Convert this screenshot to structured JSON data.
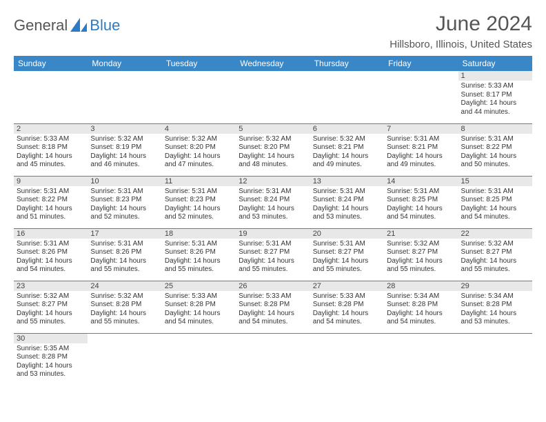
{
  "logo": {
    "text1": "General",
    "text2": "Blue"
  },
  "title": "June 2024",
  "location": "Hillsboro, Illinois, United States",
  "weekdays": [
    "Sunday",
    "Monday",
    "Tuesday",
    "Wednesday",
    "Thursday",
    "Friday",
    "Saturday"
  ],
  "colors": {
    "header_bg": "#3a87c8",
    "header_fg": "#ffffff",
    "daynum_bg": "#e8e8e8",
    "border": "#3a87c8",
    "logo_blue": "#2d7bc4",
    "text": "#333333"
  },
  "weeks": [
    [
      null,
      null,
      null,
      null,
      null,
      null,
      {
        "n": "1",
        "sr": "5:33 AM",
        "ss": "8:17 PM",
        "dl": "14 hours and 44 minutes."
      }
    ],
    [
      {
        "n": "2",
        "sr": "5:33 AM",
        "ss": "8:18 PM",
        "dl": "14 hours and 45 minutes."
      },
      {
        "n": "3",
        "sr": "5:32 AM",
        "ss": "8:19 PM",
        "dl": "14 hours and 46 minutes."
      },
      {
        "n": "4",
        "sr": "5:32 AM",
        "ss": "8:20 PM",
        "dl": "14 hours and 47 minutes."
      },
      {
        "n": "5",
        "sr": "5:32 AM",
        "ss": "8:20 PM",
        "dl": "14 hours and 48 minutes."
      },
      {
        "n": "6",
        "sr": "5:32 AM",
        "ss": "8:21 PM",
        "dl": "14 hours and 49 minutes."
      },
      {
        "n": "7",
        "sr": "5:31 AM",
        "ss": "8:21 PM",
        "dl": "14 hours and 49 minutes."
      },
      {
        "n": "8",
        "sr": "5:31 AM",
        "ss": "8:22 PM",
        "dl": "14 hours and 50 minutes."
      }
    ],
    [
      {
        "n": "9",
        "sr": "5:31 AM",
        "ss": "8:22 PM",
        "dl": "14 hours and 51 minutes."
      },
      {
        "n": "10",
        "sr": "5:31 AM",
        "ss": "8:23 PM",
        "dl": "14 hours and 52 minutes."
      },
      {
        "n": "11",
        "sr": "5:31 AM",
        "ss": "8:23 PM",
        "dl": "14 hours and 52 minutes."
      },
      {
        "n": "12",
        "sr": "5:31 AM",
        "ss": "8:24 PM",
        "dl": "14 hours and 53 minutes."
      },
      {
        "n": "13",
        "sr": "5:31 AM",
        "ss": "8:24 PM",
        "dl": "14 hours and 53 minutes."
      },
      {
        "n": "14",
        "sr": "5:31 AM",
        "ss": "8:25 PM",
        "dl": "14 hours and 54 minutes."
      },
      {
        "n": "15",
        "sr": "5:31 AM",
        "ss": "8:25 PM",
        "dl": "14 hours and 54 minutes."
      }
    ],
    [
      {
        "n": "16",
        "sr": "5:31 AM",
        "ss": "8:26 PM",
        "dl": "14 hours and 54 minutes."
      },
      {
        "n": "17",
        "sr": "5:31 AM",
        "ss": "8:26 PM",
        "dl": "14 hours and 55 minutes."
      },
      {
        "n": "18",
        "sr": "5:31 AM",
        "ss": "8:26 PM",
        "dl": "14 hours and 55 minutes."
      },
      {
        "n": "19",
        "sr": "5:31 AM",
        "ss": "8:27 PM",
        "dl": "14 hours and 55 minutes."
      },
      {
        "n": "20",
        "sr": "5:31 AM",
        "ss": "8:27 PM",
        "dl": "14 hours and 55 minutes."
      },
      {
        "n": "21",
        "sr": "5:32 AM",
        "ss": "8:27 PM",
        "dl": "14 hours and 55 minutes."
      },
      {
        "n": "22",
        "sr": "5:32 AM",
        "ss": "8:27 PM",
        "dl": "14 hours and 55 minutes."
      }
    ],
    [
      {
        "n": "23",
        "sr": "5:32 AM",
        "ss": "8:27 PM",
        "dl": "14 hours and 55 minutes."
      },
      {
        "n": "24",
        "sr": "5:32 AM",
        "ss": "8:28 PM",
        "dl": "14 hours and 55 minutes."
      },
      {
        "n": "25",
        "sr": "5:33 AM",
        "ss": "8:28 PM",
        "dl": "14 hours and 54 minutes."
      },
      {
        "n": "26",
        "sr": "5:33 AM",
        "ss": "8:28 PM",
        "dl": "14 hours and 54 minutes."
      },
      {
        "n": "27",
        "sr": "5:33 AM",
        "ss": "8:28 PM",
        "dl": "14 hours and 54 minutes."
      },
      {
        "n": "28",
        "sr": "5:34 AM",
        "ss": "8:28 PM",
        "dl": "14 hours and 54 minutes."
      },
      {
        "n": "29",
        "sr": "5:34 AM",
        "ss": "8:28 PM",
        "dl": "14 hours and 53 minutes."
      }
    ],
    [
      {
        "n": "30",
        "sr": "5:35 AM",
        "ss": "8:28 PM",
        "dl": "14 hours and 53 minutes."
      },
      null,
      null,
      null,
      null,
      null,
      null
    ]
  ],
  "labels": {
    "sunrise": "Sunrise:",
    "sunset": "Sunset:",
    "daylight": "Daylight:"
  }
}
